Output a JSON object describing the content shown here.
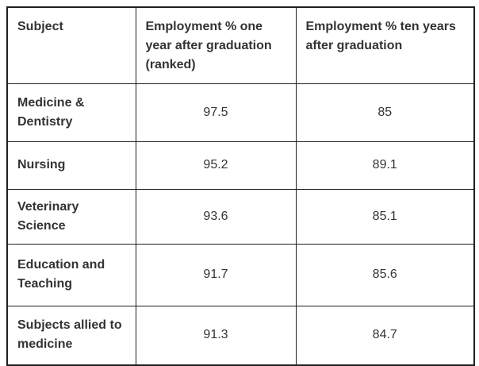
{
  "table": {
    "columns": [
      {
        "header": "Subject"
      },
      {
        "header": "Employment % one year after graduation (ranked)"
      },
      {
        "header": "Employment % ten years after graduation"
      }
    ],
    "rows": [
      {
        "subject": "Medicine & Dentistry",
        "one_year": "97.5",
        "ten_years": "85"
      },
      {
        "subject": "Nursing",
        "one_year": "95.2",
        "ten_years": "89.1"
      },
      {
        "subject": "Veterinary Science",
        "one_year": "93.6",
        "ten_years": "85.1"
      },
      {
        "subject": "Education and Teaching",
        "one_year": "91.7",
        "ten_years": "85.6"
      },
      {
        "subject": "Subjects allied to medicine",
        "one_year": "91.3",
        "ten_years": "84.7"
      }
    ],
    "colors": {
      "text": "#333333",
      "border": "#1f1f1f",
      "background": "#ffffff"
    }
  },
  "chart_data": {
    "type": "table",
    "title": "",
    "columns": [
      "Subject",
      "Employment % one year after graduation (ranked)",
      "Employment % ten years after graduation"
    ],
    "categories": [
      "Medicine & Dentistry",
      "Nursing",
      "Veterinary Science",
      "Education and Teaching",
      "Subjects allied to medicine"
    ],
    "series": [
      {
        "name": "Employment % one year after graduation (ranked)",
        "values": [
          97.5,
          95.2,
          93.6,
          91.7,
          91.3
        ]
      },
      {
        "name": "Employment % ten years after graduation",
        "values": [
          85,
          89.1,
          85.1,
          85.6,
          84.7
        ]
      }
    ]
  }
}
